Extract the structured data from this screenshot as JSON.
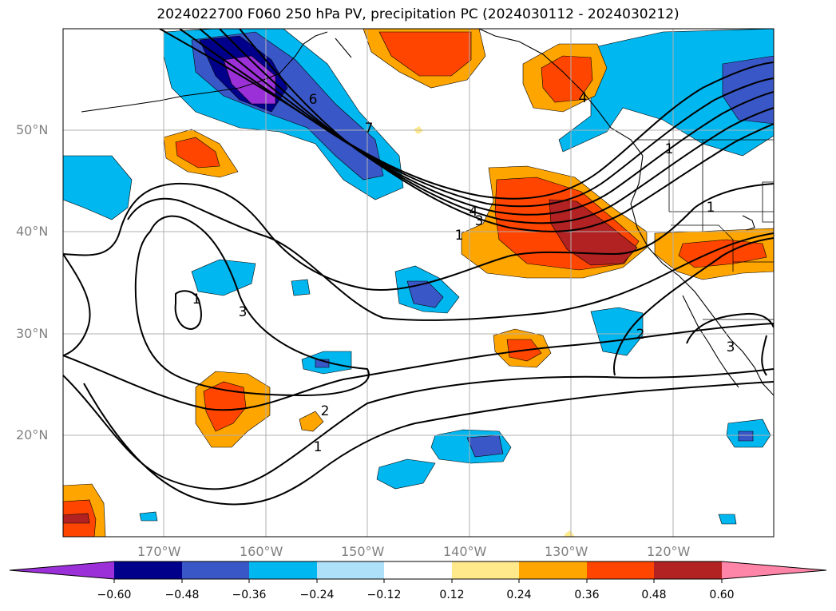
{
  "title": "2024022700 F060 250 hPa PV, precipitation PC (2024030112 - 2024030212)",
  "latitude_labels": [
    "50°N",
    "40°N",
    "30°N",
    "20°N"
  ],
  "longitude_labels": [
    "170°W",
    "160°W",
    "150°W",
    "140°W",
    "130°W",
    "120°W"
  ],
  "contour_labels": [
    "6",
    "7",
    "4",
    "3",
    "1",
    "1",
    "3",
    "2",
    "2",
    "1",
    "1",
    "1",
    "3",
    "4"
  ],
  "colorbar": {
    "ticks": [
      "−0.60",
      "−0.48",
      "−0.36",
      "−0.24",
      "−0.12",
      "0.12",
      "0.24",
      "0.36",
      "0.48",
      "0.60"
    ],
    "colors": [
      "#9b30d8",
      "#00008b",
      "#3a57c8",
      "#00b7f0",
      "#aee0fa",
      "#ffffff",
      "#ffe98a",
      "#ffa500",
      "#ff4500",
      "#b22222",
      "#ff85a8"
    ],
    "extend": "both"
  }
}
